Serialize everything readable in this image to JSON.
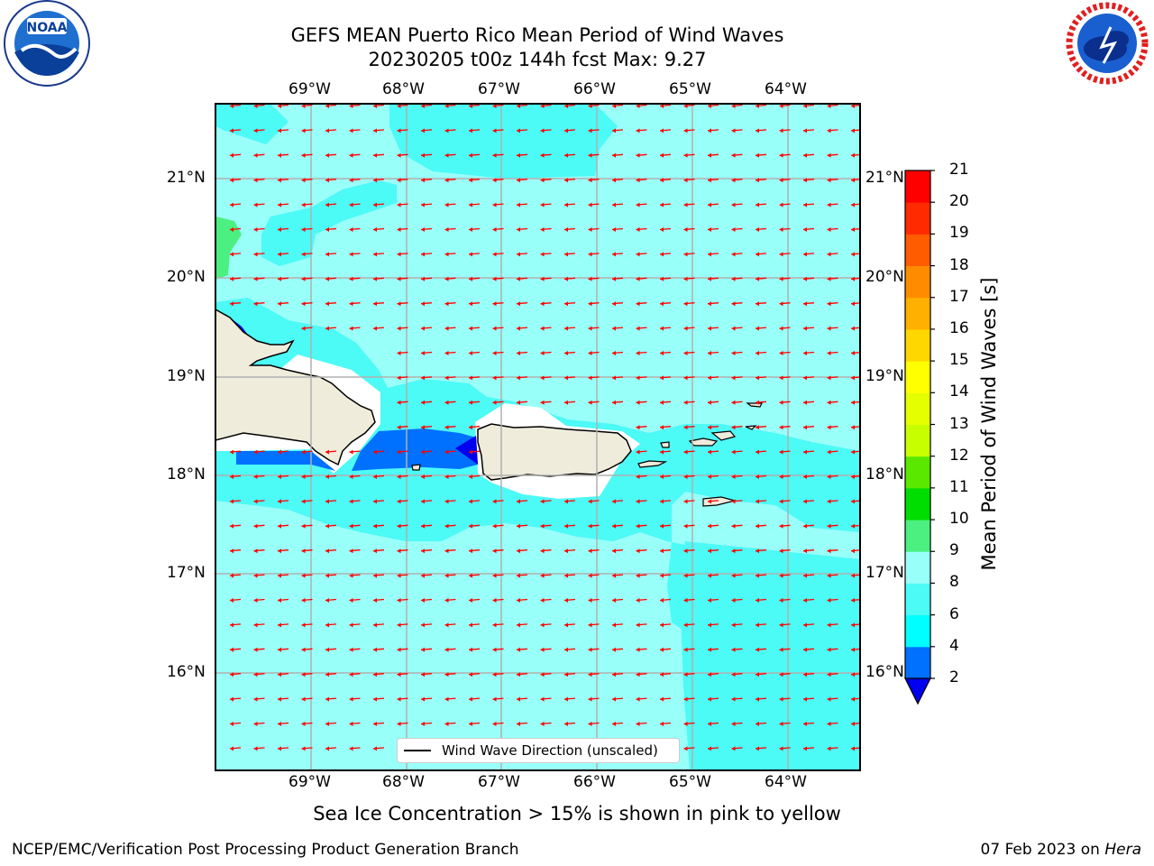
{
  "header": {
    "title_line1": "GEFS MEAN Puerto Rico Mean Period of Wind Waves",
    "title_line2": "20230205 t00z 144h fcst   Max: 9.27"
  },
  "logos": {
    "left": {
      "name": "NOAA",
      "icon": "noaa-logo"
    },
    "right": {
      "name": "NATIONAL WEATHER SERVICE",
      "icon": "nws-logo"
    }
  },
  "map": {
    "lon_ticks": [
      "69°W",
      "68°W",
      "67°W",
      "66°W",
      "65°W",
      "64°W"
    ],
    "lat_ticks": [
      "21°N",
      "20°N",
      "19°N",
      "18°N",
      "17°N",
      "16°N"
    ],
    "lon_range": [
      -70.0,
      -63.25
    ],
    "lat_range": [
      15.0,
      21.75
    ],
    "arrow_color": "#ff0000",
    "land_color": "#efecdc",
    "legend": "Wind Wave Direction (unscaled)"
  },
  "colorbar": {
    "label": "Mean Period of Wind Waves [s]",
    "ticks": [
      "21",
      "20",
      "19",
      "18",
      "17",
      "16",
      "15",
      "14",
      "13",
      "12",
      "11",
      "10",
      "9",
      "8",
      "6",
      "4",
      "2"
    ],
    "colors": [
      "#0000ee",
      "#0070ff",
      "#00ffff",
      "#4cfaf6",
      "#99fff9",
      "#4bf080",
      "#00dd00",
      "#5ae800",
      "#c8ff00",
      "#e6ff00",
      "#ffff00",
      "#ffd700",
      "#ffb000",
      "#ff8c00",
      "#ff5c00",
      "#ff2a00",
      "#ff0000"
    ]
  },
  "subtitle": "Sea Ice Concentration > 15% is shown in pink to yellow",
  "footer": {
    "left": "NCEP/EMC/Verification Post Processing Product Generation Branch",
    "right_date": "07 Feb 2023 on ",
    "right_host": "Hera"
  }
}
